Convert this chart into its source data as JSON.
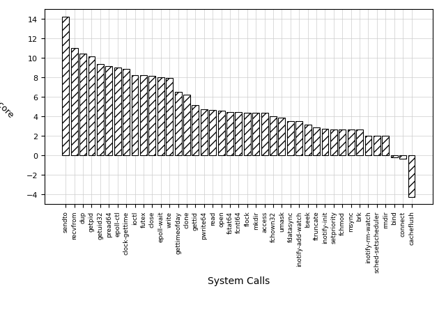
{
  "categories": [
    "sendto",
    "recvfrom",
    "dup",
    "getpid",
    "getuid32",
    "pread64",
    "epoll-ctl",
    "clock-gettime",
    "ioctl",
    "futex",
    "close",
    "epoll-wait",
    "write",
    "gettimeofday",
    "clone",
    "gettid",
    "pwrite64",
    "read",
    "open",
    "fstat64",
    "fcntl64",
    "flock",
    "mkdir",
    "access",
    "fchown32",
    "umask",
    "fdatasync",
    "inotify-add-watch",
    "lseek",
    "ftruncate",
    "inotify-init",
    "setpriority",
    "fchmod",
    "msync",
    "brk",
    "inotify-rm-watch",
    "sched-setscheduler",
    "rmdir",
    "bind",
    "connect",
    "cacheflush"
  ],
  "values": [
    14.2,
    11.0,
    10.4,
    10.1,
    9.3,
    9.1,
    9.0,
    8.8,
    8.2,
    8.2,
    8.1,
    8.0,
    7.9,
    6.5,
    6.2,
    5.1,
    4.7,
    4.6,
    4.55,
    4.4,
    4.4,
    4.3,
    4.3,
    4.3,
    4.0,
    3.85,
    3.5,
    3.5,
    3.1,
    2.85,
    2.7,
    2.65,
    2.65,
    2.65,
    2.65,
    2.0,
    2.0,
    2.0,
    -0.2,
    -0.4,
    -4.3
  ],
  "ylabel": "zscore",
  "xlabel": "System Calls",
  "ylim": [
    -5,
    15
  ],
  "yticks": [
    -4,
    -2,
    0,
    2,
    4,
    6,
    8,
    10,
    12,
    14
  ],
  "bar_color": "white",
  "bar_edgecolor": "black",
  "hatch": "///",
  "figsize": [
    6.4,
    4.52
  ],
  "dpi": 100,
  "grid_color": "#cccccc",
  "ylabel_rotation": -45,
  "title": ""
}
